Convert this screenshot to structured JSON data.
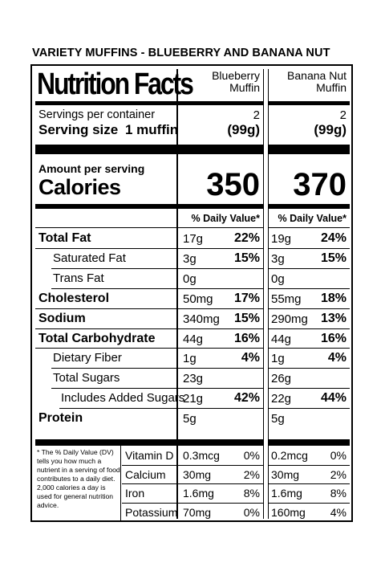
{
  "heading": "VARIETY MUFFINS - BLUEBERRY AND BANANA NUT",
  "title": "Nutrition Facts",
  "columns": [
    {
      "name_line1": "Blueberry",
      "name_line2": "Muffin",
      "servings": "2",
      "serving_size": "(99g)",
      "calories": "350"
    },
    {
      "name_line1": "Banana Nut",
      "name_line2": "Muffin",
      "servings": "2",
      "serving_size": "(99g)",
      "calories": "370"
    }
  ],
  "servings_label": "Servings per container",
  "serving_size_label": "Serving size",
  "serving_size_value": "1 muffin",
  "amount_per_serving": "Amount per serving",
  "calories_label": "Calories",
  "dv_header": "% Daily Value*",
  "nutrients": [
    {
      "label": "Total Fat",
      "bold": true,
      "indent": 0,
      "c1_amt": "17g",
      "c1_dv": "22%",
      "c2_amt": "19g",
      "c2_dv": "24%"
    },
    {
      "label": "Saturated Fat",
      "bold": false,
      "indent": 1,
      "c1_amt": "3g",
      "c1_dv": "15%",
      "c2_amt": "3g",
      "c2_dv": "15%"
    },
    {
      "label": "Trans Fat",
      "bold": false,
      "indent": 1,
      "c1_amt": "0g",
      "c1_dv": "",
      "c2_amt": "0g",
      "c2_dv": ""
    },
    {
      "label": "Cholesterol",
      "bold": true,
      "indent": 0,
      "c1_amt": "50mg",
      "c1_dv": "17%",
      "c2_amt": "55mg",
      "c2_dv": "18%"
    },
    {
      "label": "Sodium",
      "bold": true,
      "indent": 0,
      "c1_amt": "340mg",
      "c1_dv": "15%",
      "c2_amt": "290mg",
      "c2_dv": "13%"
    },
    {
      "label": "Total Carbohydrate",
      "bold": true,
      "indent": 0,
      "c1_amt": "44g",
      "c1_dv": "16%",
      "c2_amt": "44g",
      "c2_dv": "16%"
    },
    {
      "label": "Dietary Fiber",
      "bold": false,
      "indent": 1,
      "c1_amt": "1g",
      "c1_dv": "4%",
      "c2_amt": "1g",
      "c2_dv": "4%"
    },
    {
      "label": "Total Sugars",
      "bold": false,
      "indent": 1,
      "c1_amt": "23g",
      "c1_dv": "",
      "c2_amt": "26g",
      "c2_dv": ""
    },
    {
      "label": "Includes Added Sugars",
      "bold": false,
      "indent": 2,
      "c1_amt": "21g",
      "c1_dv": "42%",
      "c2_amt": "22g",
      "c2_dv": "44%"
    },
    {
      "label": "Protein",
      "bold": true,
      "indent": 0,
      "c1_amt": "5g",
      "c1_dv": "",
      "c2_amt": "5g",
      "c2_dv": ""
    }
  ],
  "footnote": "* The % Daily Value (DV) tells you how much a nutrient in a serving of food contributes to a daily diet. 2,000 calories a day is used for general nutrition advice.",
  "vitamins": [
    {
      "label": "Vitamin D",
      "c1_amt": "0.3mcg",
      "c1_dv": "0%",
      "c2_amt": "0.2mcg",
      "c2_dv": "0%"
    },
    {
      "label": "Calcium",
      "c1_amt": "30mg",
      "c1_dv": "2%",
      "c2_amt": "30mg",
      "c2_dv": "2%"
    },
    {
      "label": "Iron",
      "c1_amt": "1.6mg",
      "c1_dv": "8%",
      "c2_amt": "1.6mg",
      "c2_dv": "8%"
    },
    {
      "label": "Potassium",
      "c1_amt": "70mg",
      "c1_dv": "0%",
      "c2_amt": "160mg",
      "c2_dv": "4%"
    }
  ]
}
